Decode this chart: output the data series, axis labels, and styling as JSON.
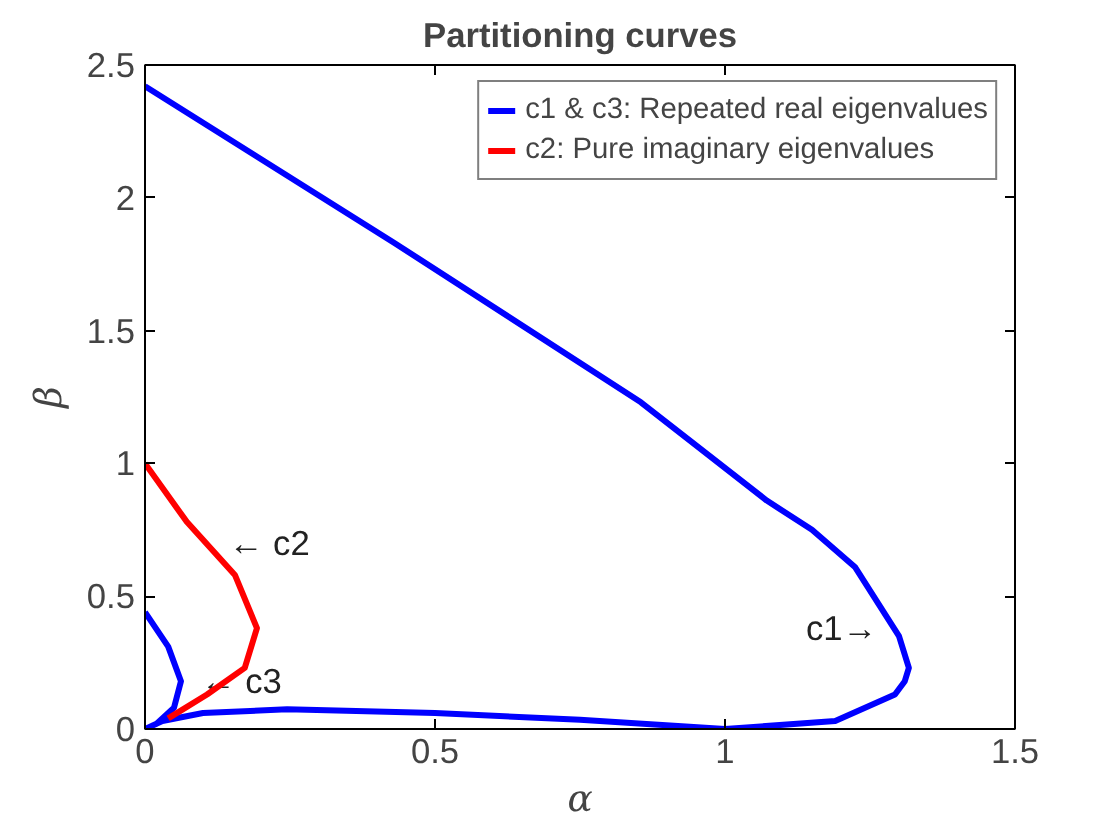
{
  "chart_data": {
    "type": "line",
    "title": "Partitioning curves",
    "xlabel": "α",
    "ylabel": "β",
    "xlim": [
      0,
      1.5
    ],
    "ylim": [
      0,
      2.5
    ],
    "xticks": [
      0,
      0.5,
      1,
      1.5
    ],
    "yticks": [
      0,
      0.5,
      1,
      1.5,
      2,
      2.5
    ],
    "grid": false,
    "legend": "top right",
    "marker": "none",
    "line_style": "solid",
    "series": [
      {
        "name": "c1 & c3: Repeated real eigenvalues",
        "color": "#0000ff",
        "x": [
          0,
          0.43,
          0.855,
          1.072,
          1.15,
          1.224,
          1.3,
          1.317,
          1.31,
          1.293,
          1.19,
          1.0,
          0.75,
          0.5,
          0.245,
          0.1,
          0.03,
          0,
          0.02,
          0.05,
          0.062,
          0.04,
          0
        ],
        "values": [
          2.42,
          1.83,
          1.23,
          0.86,
          0.75,
          0.61,
          0.35,
          0.23,
          0.18,
          0.13,
          0.03,
          0,
          0.035,
          0.06,
          0.074,
          0.06,
          0.03,
          0,
          0.02,
          0.08,
          0.18,
          0.31,
          0.44
        ]
      },
      {
        "name": "c2: Pure imaginary eigenvalues",
        "color": "#ff0000",
        "x": [
          0,
          0.072,
          0.155,
          0.193,
          0.172,
          0.107,
          0.04
        ],
        "values": [
          1,
          0.78,
          0.58,
          0.38,
          0.23,
          0.13,
          0.04
        ]
      }
    ],
    "annotations": [
      {
        "text": "← c2",
        "x": 0.11,
        "y": 0.7
      },
      {
        "text": "← c3",
        "x": 0.062,
        "y": 0.18
      },
      {
        "text": "c1→",
        "x": 1.29,
        "y": 0.38
      }
    ]
  }
}
